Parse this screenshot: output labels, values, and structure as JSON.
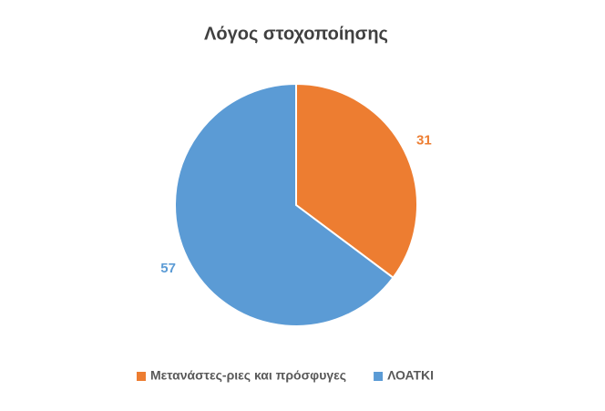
{
  "chart_data": {
    "type": "pie",
    "title": "Λόγος στοχοποίησης",
    "categories": [
      "Μετανάστες-ριες και πρόσφυγες",
      "ΛΟΑΤΚΙ"
    ],
    "values": [
      31,
      57
    ],
    "colors": [
      "#ed7d31",
      "#5b9bd5"
    ],
    "legend": "bottom"
  }
}
